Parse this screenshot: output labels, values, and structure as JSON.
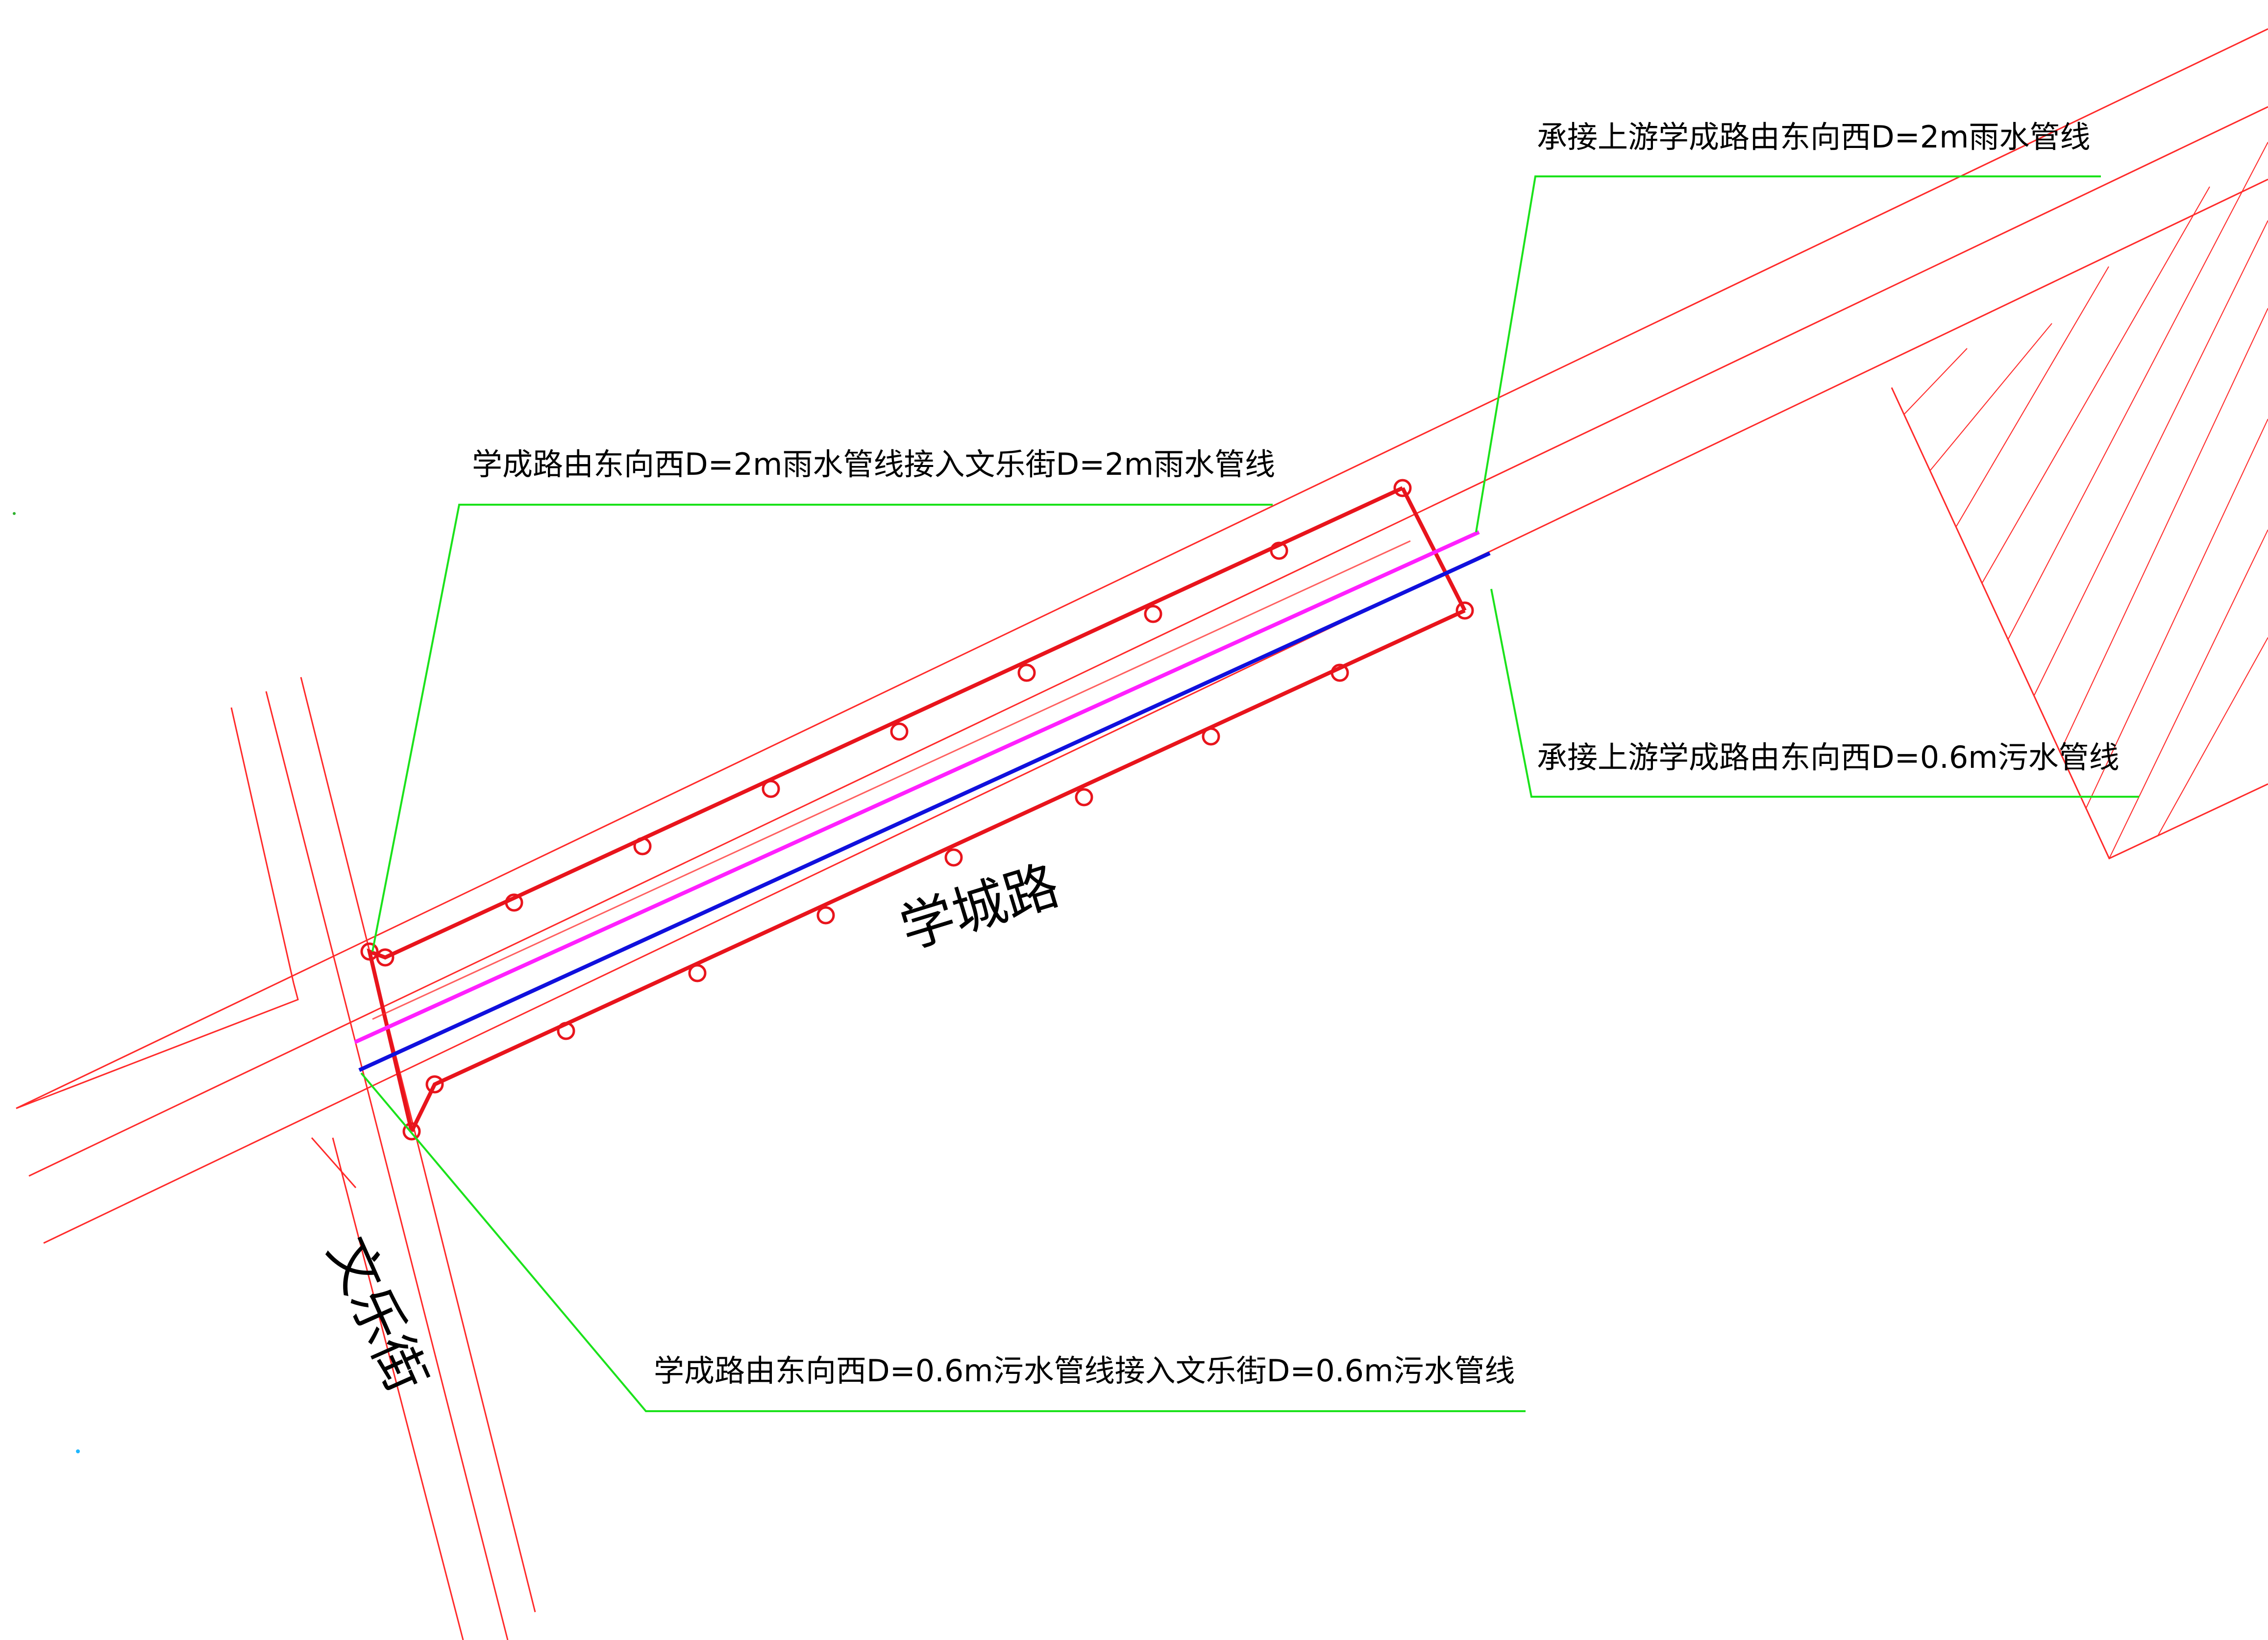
{
  "labels": {
    "upstream_rain": "承接上游学成路由东向西D=2m雨水管线",
    "rain_connection": "学成路由东向西D=2m雨水管线接入文乐街D=2m雨水管线",
    "upstream_sewage": "承接上游学成路由东向西D=0.6m污水管线",
    "sewage_connection": "学成路由东向西D=0.6m污水管线接入文乐街D=0.6m污水管线",
    "road_xuecheng": "学城路",
    "road_wenle": "文乐街"
  },
  "colors": {
    "road_edge": "#ff2a2a",
    "pipe": "#e8141c",
    "rain_line": "#ff20ff",
    "sewage_line": "#1010dd",
    "leader": "#1be21b",
    "text": "#000000"
  },
  "drawing_elements": {
    "manholes": "manhole-circle",
    "hatch": "hatched-parcel"
  }
}
